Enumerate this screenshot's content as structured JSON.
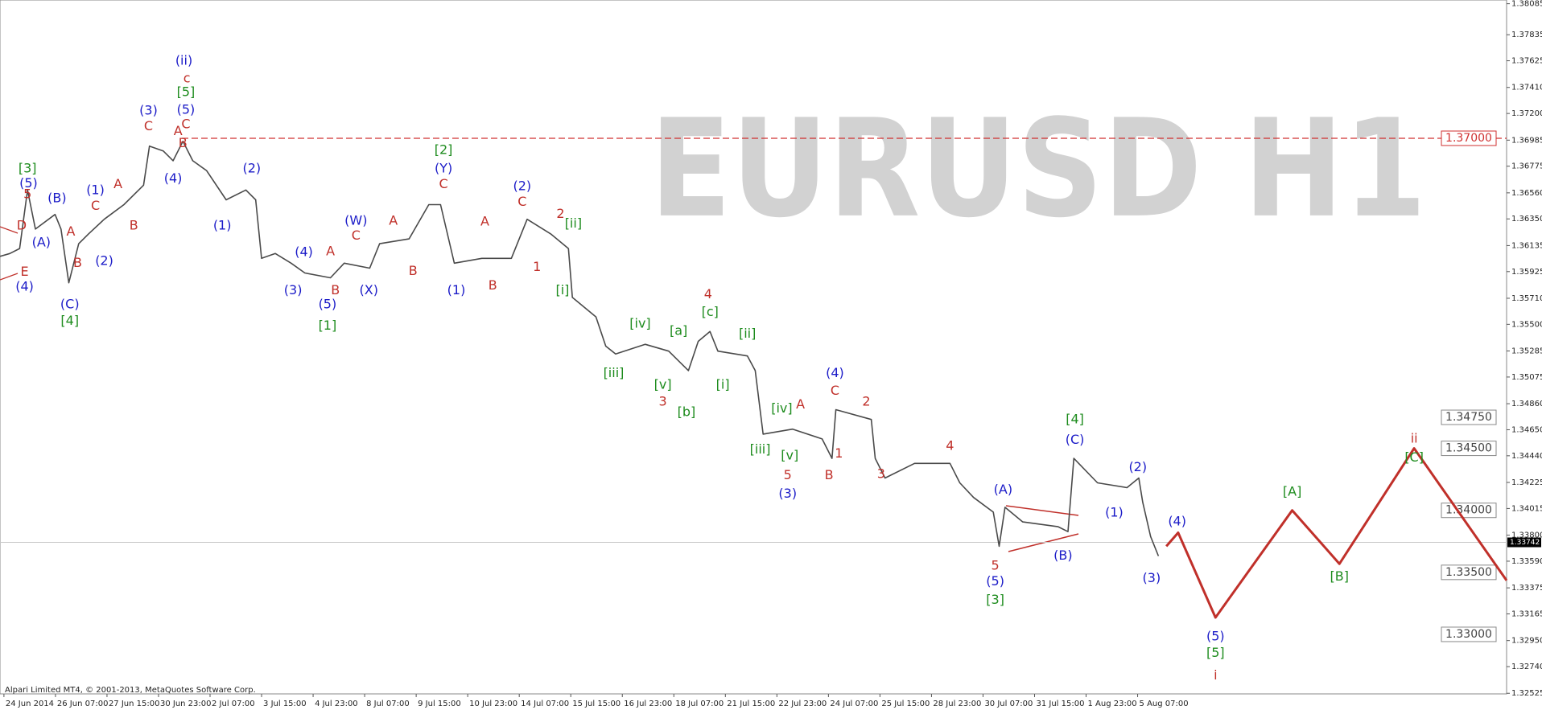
{
  "chart_data": {
    "type": "line",
    "title": "EURUSD H1",
    "copyright": "Alpari Limited MT4, © 2001-2013, MetaQuotes Software Corp.",
    "categories": [
      "24 Jun 2014",
      "26 Jun 07:00",
      "27 Jun 15:00",
      "30 Jun 23:00",
      "2 Jul 07:00",
      "3 Jul 15:00",
      "4 Jul 23:00",
      "8 Jul 07:00",
      "9 Jul 15:00",
      "10 Jul 23:00",
      "14 Jul 07:00",
      "15 Jul 15:00",
      "16 Jul 23:00",
      "18 Jul 07:00",
      "21 Jul 15:00",
      "22 Jul 23:00",
      "24 Jul 07:00",
      "25 Jul 15:00",
      "28 Jul 23:00",
      "30 Jul 07:00",
      "31 Jul 15:00",
      "1 Aug 23:00",
      "5 Aug 07:00"
    ],
    "xlim": [
      0,
      766
    ],
    "ylim": [
      1.3252,
      1.38115
    ],
    "yticks": [
      1.38085,
      1.37835,
      1.37625,
      {
        "value": 1.3741,
        "label": "1.37410"
      },
      {
        "value": 1.372,
        "label": "1.37200"
      },
      1.36985,
      1.36775,
      {
        "value": 1.3656,
        "label": "1.36560"
      },
      {
        "value": 1.3635,
        "label": "1.36350"
      },
      1.36135,
      1.35925,
      {
        "value": 1.3571,
        "label": "1.35710"
      },
      {
        "value": 1.355,
        "label": "1.35500"
      },
      1.35285,
      1.35075,
      {
        "value": 1.3486,
        "label": "1.34860"
      },
      {
        "value": 1.3465,
        "label": "1.34650"
      },
      {
        "value": 1.3444,
        "label": "1.34440"
      },
      1.34225,
      1.34015,
      {
        "value": 1.338,
        "label": "1.33800"
      },
      {
        "value": 1.3359,
        "label": "1.33590"
      },
      1.33375,
      1.33165,
      {
        "value": 1.3295,
        "label": "1.32950"
      },
      {
        "value": 1.3274,
        "label": "1.32740"
      },
      1.32525
    ],
    "price": {
      "color": "#4a4a4a",
      "x": [
        0,
        5,
        10,
        14,
        18,
        28,
        31,
        35,
        40,
        45,
        53,
        63,
        73,
        76,
        83,
        88,
        93,
        98,
        105,
        115,
        125,
        130,
        133,
        140,
        148,
        155,
        168,
        175,
        188,
        193,
        208,
        218,
        224,
        231,
        245,
        260,
        268,
        280,
        289,
        291,
        303,
        308,
        313,
        328,
        340,
        350,
        355,
        361,
        365,
        380,
        384,
        388,
        403,
        418,
        423,
        425,
        443,
        445,
        450,
        465,
        483,
        488,
        495,
        505,
        508,
        511,
        520,
        538,
        543,
        546,
        558,
        573,
        579,
        581,
        585,
        589
      ],
      "values": [
        1.36048,
        1.36071,
        1.36111,
        1.36583,
        1.36268,
        1.36386,
        1.36268,
        1.35835,
        1.3615,
        1.36229,
        1.36347,
        1.36465,
        1.36622,
        1.36937,
        1.36898,
        1.36819,
        1.36976,
        1.36819,
        1.3674,
        1.36504,
        1.36583,
        1.36504,
        1.36032,
        1.36071,
        1.35993,
        1.35914,
        1.35875,
        1.35993,
        1.35953,
        1.3615,
        1.36189,
        1.36465,
        1.36465,
        1.35993,
        1.36032,
        1.36032,
        1.36347,
        1.36229,
        1.36111,
        1.35717,
        1.3556,
        1.35324,
        1.35261,
        1.35339,
        1.35284,
        1.35127,
        1.35363,
        1.35442,
        1.35284,
        1.35245,
        1.35127,
        1.34615,
        1.34655,
        1.34576,
        1.34419,
        1.34812,
        1.34733,
        1.34419,
        1.34261,
        1.34379,
        1.34379,
        1.34222,
        1.34104,
        1.33986,
        1.3371,
        1.34025,
        1.33907,
        1.33868,
        1.33828,
        1.34419,
        1.34222,
        1.34183,
        1.34261,
        1.34065,
        1.33789,
        1.33632
      ]
    },
    "forecast": {
      "color": "#c0302a",
      "x": [
        593,
        599,
        618,
        657,
        681,
        719,
        766
      ],
      "values": [
        1.3371,
        1.3382,
        1.33136,
        1.34,
        1.33569,
        1.345,
        1.33435
      ]
    },
    "current_price": 1.33742,
    "resistance": {
      "value": 1.37,
      "label": "1.37000",
      "color": "#d03030"
    },
    "levels": [
      {
        "value": 1.3475,
        "label": "1.34750"
      },
      {
        "value": 1.345,
        "label": "1.34500"
      },
      {
        "value": 1.34,
        "label": "1.34000"
      },
      {
        "value": 1.335,
        "label": "1.33500"
      },
      {
        "value": 1.33,
        "label": "1.33000"
      }
    ],
    "wave_labels": [
      {
        "text": "D",
        "color": "#c0302a"
      },
      {
        "text": "E",
        "color": "#c0302a"
      },
      {
        "text": "(4)",
        "color": "#1c1cc8"
      },
      {
        "text": "[3]",
        "color": "#1e8c1e"
      },
      {
        "text": "(5)",
        "color": "#1c1cc8"
      },
      {
        "text": "5",
        "color": "#c0302a"
      },
      {
        "text": "(A)",
        "color": "#1c1cc8"
      },
      {
        "text": "(B)",
        "color": "#1c1cc8"
      },
      {
        "text": "A",
        "color": "#c0302a"
      },
      {
        "text": "B",
        "color": "#c0302a"
      },
      {
        "text": "(C)",
        "color": "#1c1cc8"
      },
      {
        "text": "[4]",
        "color": "#1e8c1e"
      },
      {
        "text": "(1)",
        "color": "#1c1cc8"
      },
      {
        "text": "C",
        "color": "#c0302a"
      },
      {
        "text": "(2)",
        "color": "#1c1cc8"
      },
      {
        "text": "A",
        "color": "#c0302a"
      },
      {
        "text": "B",
        "color": "#c0302a"
      },
      {
        "text": "(3)",
        "color": "#1c1cc8"
      },
      {
        "text": "C",
        "color": "#c0302a"
      },
      {
        "text": "(4)",
        "color": "#1c1cc8"
      },
      {
        "text": "A",
        "color": "#c0302a"
      },
      {
        "text": "B",
        "color": "#c0302a"
      },
      {
        "text": "(ii)",
        "color": "#1c1cc8"
      },
      {
        "text": "c",
        "color": "#c0302a"
      },
      {
        "text": "[5]",
        "color": "#1e8c1e"
      },
      {
        "text": "(5)",
        "color": "#1c1cc8"
      },
      {
        "text": "C",
        "color": "#c0302a"
      },
      {
        "text": "(1)",
        "color": "#1c1cc8"
      },
      {
        "text": "(2)",
        "color": "#1c1cc8"
      },
      {
        "text": "(3)",
        "color": "#1c1cc8"
      },
      {
        "text": "(4)",
        "color": "#1c1cc8"
      },
      {
        "text": "A",
        "color": "#c0302a"
      },
      {
        "text": "B",
        "color": "#c0302a"
      },
      {
        "text": "(5)",
        "color": "#1c1cc8"
      },
      {
        "text": "[1]",
        "color": "#1e8c1e"
      },
      {
        "text": "(W)",
        "color": "#1c1cc8"
      },
      {
        "text": "C",
        "color": "#c0302a"
      },
      {
        "text": "(X)",
        "color": "#1c1cc8"
      },
      {
        "text": "A",
        "color": "#c0302a"
      },
      {
        "text": "B",
        "color": "#c0302a"
      },
      {
        "text": "[2]",
        "color": "#1e8c1e"
      },
      {
        "text": "(Y)",
        "color": "#1c1cc8"
      },
      {
        "text": "C",
        "color": "#c0302a"
      },
      {
        "text": "(1)",
        "color": "#1c1cc8"
      },
      {
        "text": "A",
        "color": "#c0302a"
      },
      {
        "text": "B",
        "color": "#c0302a"
      },
      {
        "text": "(2)",
        "color": "#1c1cc8"
      },
      {
        "text": "C",
        "color": "#c0302a"
      },
      {
        "text": "1",
        "color": "#c0302a"
      },
      {
        "text": "2",
        "color": "#c0302a"
      },
      {
        "text": "[ii]",
        "color": "#1e8c1e"
      },
      {
        "text": "[i]",
        "color": "#1e8c1e"
      },
      {
        "text": "[iv]",
        "color": "#1e8c1e"
      },
      {
        "text": "[iii]",
        "color": "#1e8c1e"
      },
      {
        "text": "[a]",
        "color": "#1e8c1e"
      },
      {
        "text": "[v]",
        "color": "#1e8c1e"
      },
      {
        "text": "3",
        "color": "#c0302a"
      },
      {
        "text": "[b]",
        "color": "#1e8c1e"
      },
      {
        "text": "4",
        "color": "#c0302a"
      },
      {
        "text": "[c]",
        "color": "#1e8c1e"
      },
      {
        "text": "[ii]",
        "color": "#1e8c1e"
      },
      {
        "text": "[i]",
        "color": "#1e8c1e"
      },
      {
        "text": "A",
        "color": "#c0302a"
      },
      {
        "text": "[iv]",
        "color": "#1e8c1e"
      },
      {
        "text": "[iii]",
        "color": "#1e8c1e"
      },
      {
        "text": "[v]",
        "color": "#1e8c1e"
      },
      {
        "text": "5",
        "color": "#c0302a"
      },
      {
        "text": "(3)",
        "color": "#1c1cc8"
      },
      {
        "text": "(4)",
        "color": "#1c1cc8"
      },
      {
        "text": "C",
        "color": "#c0302a"
      },
      {
        "text": "2",
        "color": "#c0302a"
      },
      {
        "text": "1",
        "color": "#c0302a"
      },
      {
        "text": "B",
        "color": "#c0302a"
      },
      {
        "text": "4",
        "color": "#c0302a"
      },
      {
        "text": "3",
        "color": "#c0302a"
      },
      {
        "text": "(A)",
        "color": "#1c1cc8"
      },
      {
        "text": "5",
        "color": "#c0302a"
      },
      {
        "text": "(5)",
        "color": "#1c1cc8"
      },
      {
        "text": "[3]",
        "color": "#1e8c1e"
      },
      {
        "text": "(B)",
        "color": "#1c1cc8"
      },
      {
        "text": "[4]",
        "color": "#1e8c1e"
      },
      {
        "text": "(C)",
        "color": "#1c1cc8"
      },
      {
        "text": "(2)",
        "color": "#1c1cc8"
      },
      {
        "text": "(1)",
        "color": "#1c1cc8"
      },
      {
        "text": "(3)",
        "color": "#1c1cc8"
      },
      {
        "text": "(4)",
        "color": "#1c1cc8"
      },
      {
        "text": "(5)",
        "color": "#1c1cc8"
      },
      {
        "text": "[5]",
        "color": "#1e8c1e"
      },
      {
        "text": "i",
        "color": "#c0302a"
      },
      {
        "text": "[A]",
        "color": "#1e8c1e"
      },
      {
        "text": "[B]",
        "color": "#1e8c1e"
      },
      {
        "text": "ii",
        "color": "#c0302a"
      },
      {
        "text": "[C]",
        "color": "#1e8c1e"
      }
    ]
  }
}
